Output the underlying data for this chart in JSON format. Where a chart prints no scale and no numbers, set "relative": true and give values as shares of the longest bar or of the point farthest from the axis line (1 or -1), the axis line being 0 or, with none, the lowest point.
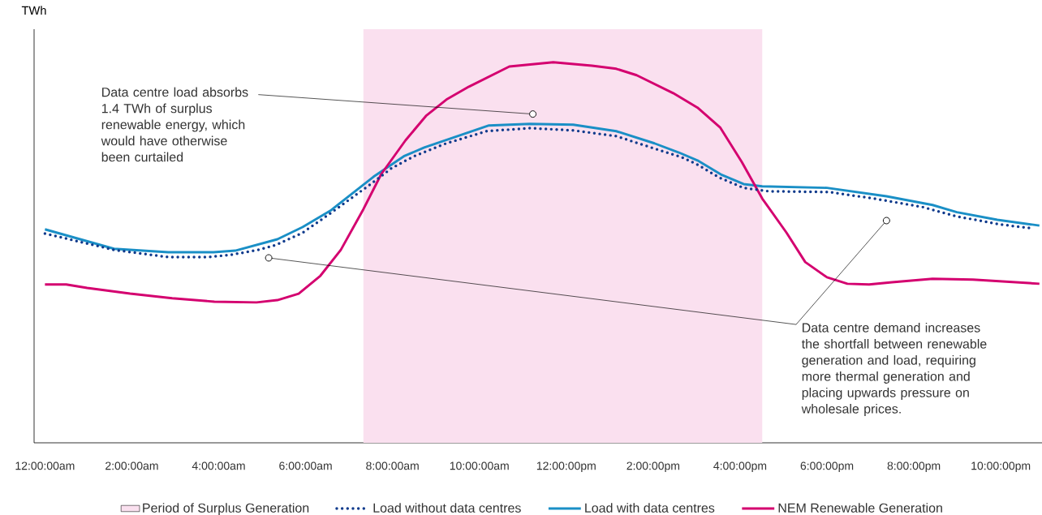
{
  "chart_data": {
    "type": "line",
    "relative": true,
    "ylabel": "TWh",
    "xlim": [
      -0.25,
      22.95
    ],
    "xticks": [
      {
        "value": 0,
        "label": "12:00:00am"
      },
      {
        "value": 2,
        "label": "2:00:00am"
      },
      {
        "value": 4,
        "label": "4:00:00am"
      },
      {
        "value": 6,
        "label": "6:00:00am"
      },
      {
        "value": 8,
        "label": "8:00:00am"
      },
      {
        "value": 10,
        "label": "10:00:00am"
      },
      {
        "value": 12,
        "label": "12:00:00pm"
      },
      {
        "value": 14,
        "label": "2:00:00pm"
      },
      {
        "value": 16,
        "label": "4:00:00pm"
      },
      {
        "value": 18,
        "label": "6:00:00pm"
      },
      {
        "value": 20,
        "label": "8:00:00pm"
      },
      {
        "value": 22,
        "label": "10:00:00pm"
      }
    ],
    "tick_labels": "x",
    "legend": "bottom",
    "bands": [
      {
        "axis": "x",
        "from": 7.33,
        "to": 16.51,
        "label": "Period of Surplus Generation",
        "color": "#fae0ef"
      }
    ],
    "series": [
      {
        "name": "Load without data centres",
        "color": "#0f3a8c",
        "line_style": "dotted",
        "x": [
          0,
          1.59,
          2.84,
          3.77,
          4.33,
          4.91,
          5.32,
          5.93,
          6.57,
          7.5,
          7.97,
          8.49,
          9.24,
          10.17,
          11.16,
          12.16,
          13.15,
          13.9,
          14.65,
          15.02,
          15.52,
          16.08,
          16.66,
          18.06,
          19.07,
          20.19,
          20.99,
          21.98,
          22.76
        ],
        "values": [
          0.55,
          0.507,
          0.488,
          0.488,
          0.495,
          0.507,
          0.52,
          0.552,
          0.603,
          0.68,
          0.721,
          0.753,
          0.787,
          0.819,
          0.827,
          0.821,
          0.806,
          0.778,
          0.751,
          0.731,
          0.697,
          0.67,
          0.661,
          0.659,
          0.642,
          0.62,
          0.595,
          0.574,
          0.563
        ]
      },
      {
        "name": "Load with data centres",
        "color": "#1a8fc6",
        "line_style": "solid",
        "x": [
          0,
          1.59,
          2.84,
          3.88,
          4.38,
          5.35,
          5.93,
          6.57,
          7.56,
          8.26,
          8.73,
          10.22,
          11.16,
          12.16,
          13.15,
          14.03,
          14.59,
          15.02,
          15.58,
          16.08,
          16.51,
          18.0,
          19.37,
          20.43,
          20.99,
          21.92,
          22.89
        ],
        "values": [
          0.561,
          0.51,
          0.501,
          0.501,
          0.505,
          0.535,
          0.567,
          0.61,
          0.699,
          0.753,
          0.776,
          0.834,
          0.838,
          0.836,
          0.819,
          0.787,
          0.763,
          0.742,
          0.704,
          0.68,
          0.674,
          0.67,
          0.648,
          0.625,
          0.606,
          0.586,
          0.571
        ]
      },
      {
        "name": "NEM Renewable Generation",
        "color": "#d4006f",
        "line_style": "solid",
        "x": [
          0,
          0.49,
          0.97,
          1.96,
          2.93,
          3.9,
          4.87,
          5.35,
          5.84,
          6.34,
          6.81,
          7.33,
          7.74,
          8.3,
          8.77,
          9.24,
          9.76,
          10.69,
          11.7,
          12.59,
          13.15,
          13.62,
          14.46,
          15.02,
          15.54,
          16.04,
          16.51,
          17.07,
          17.5,
          18.0,
          18.47,
          18.97,
          19.5,
          20.43,
          21.36,
          22.89
        ],
        "values": [
          0.416,
          0.416,
          0.407,
          0.392,
          0.38,
          0.371,
          0.369,
          0.375,
          0.392,
          0.439,
          0.507,
          0.614,
          0.706,
          0.795,
          0.859,
          0.902,
          0.936,
          0.989,
          1.0,
          0.991,
          0.983,
          0.966,
          0.919,
          0.881,
          0.829,
          0.738,
          0.642,
          0.552,
          0.475,
          0.435,
          0.418,
          0.416,
          0.422,
          0.431,
          0.429,
          0.418
        ]
      }
    ],
    "annotations": [
      {
        "text": "Data centre load absorbs 1.4 TWh of surplus renewable energy, which would have otherwise been curtailed",
        "x": 11.23,
        "y": 0.864
      },
      {
        "text": "Data centre demand increases the shortfall between renewable generation and load, requiring more thermal generation and placing upwards pressure on wholesale prices.",
        "x": 19.37,
        "y": 0.584
      }
    ]
  }
}
